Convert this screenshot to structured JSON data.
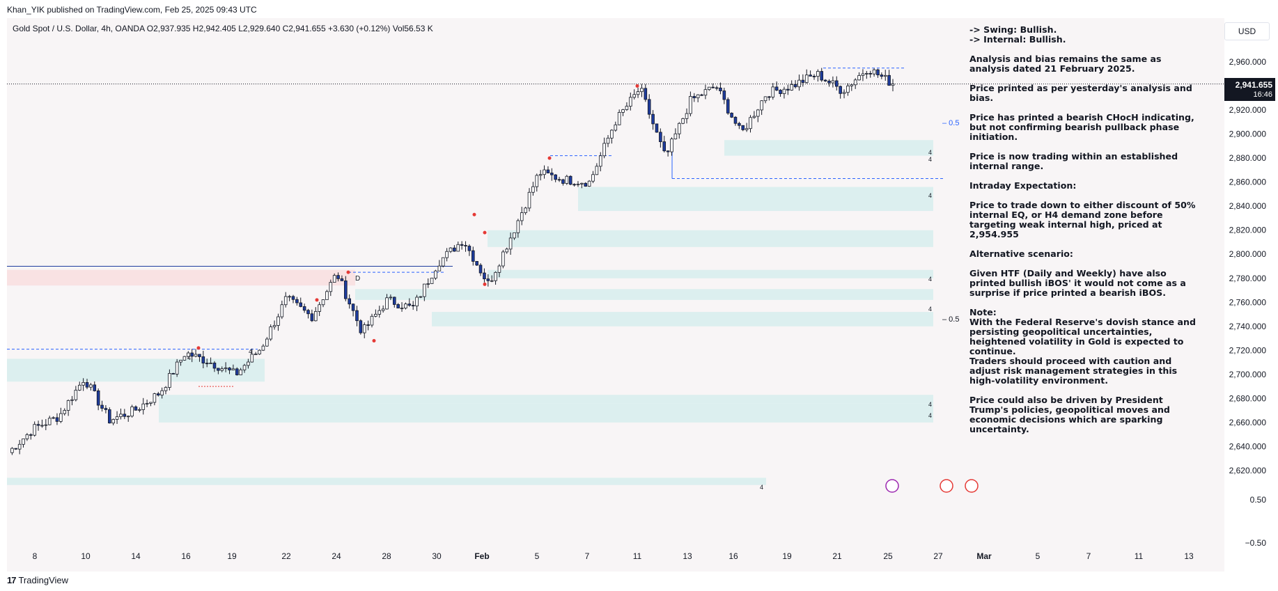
{
  "header": {
    "publisher": "Khan_YIK published on TradingView.com, Feb 25, 2025 09:43 UTC"
  },
  "symbol": {
    "line": "Gold Spot / U.S. Dollar, 4h, OANDA  O2,937.935  H2,942.405  L2,929.640  C2,941.655  +3.630 (+0.12%)  Vol56.53 K"
  },
  "price_axis": {
    "currency": "USD",
    "last_price": "2,941.655",
    "countdown": "16:46",
    "ticks": [
      "2,960.000",
      "2,940.000",
      "2,920.000",
      "2,900.000",
      "2,880.000",
      "2,860.000",
      "2,840.000",
      "2,820.000",
      "2,800.000",
      "2,780.000",
      "2,760.000",
      "2,740.000",
      "2,720.000",
      "2,700.000",
      "2,680.000",
      "2,660.000",
      "2,640.000",
      "2,620.000"
    ],
    "osc_ticks": [
      "0.50",
      "−0.50"
    ]
  },
  "time_axis": {
    "labels": [
      "8",
      "10",
      "14",
      "16",
      "19",
      "22",
      "24",
      "28",
      "30",
      "Feb",
      "5",
      "7",
      "11",
      "13",
      "16",
      "19",
      "21",
      "25",
      "27",
      "Mar",
      "5",
      "7",
      "11",
      "13"
    ]
  },
  "annotations": {
    "eq_label_top": "– 0.5",
    "eq_label_bottom": "– 0.5",
    "zone_labels": [
      "4",
      "4",
      "4",
      "4",
      "4",
      "4",
      "4",
      "4",
      "4",
      "4"
    ],
    "d_label": "D"
  },
  "notes": [
    "-> Swing:  Bullish.\n-> Internal:  Bullish.",
    "Analysis and bias remains the same as analysis dated 21 February 2025.",
    "Price printed as per yesterday's analysis and bias.",
    "Price has printed a bearish CHocH indicating, but not confirming bearish pullback phase initiation.",
    "Price is now trading within an established internal range.",
    "Intraday Expectation:",
    "Price to trade down to either discount of 50% internal EQ, or H4 demand zone before targeting weak internal high, priced at 2,954.955",
    "Alternative scenario:",
    "Given HTF (Daily and Weekly) have also printed bullish iBOS' it would not come as a surprise if price printed a bearish iBOS.",
    "Note:\nWith the Federal Reserve's dovish stance and persisting geopolitical uncertainties, heightened volatility in Gold is expected to continue.\nTraders should proceed with caution and adjust risk management strategies in this high-volatility environment.",
    "Price could also be driven by President Trump's policies, geopolitical moves and economic decisions which are sparking uncertainty."
  ],
  "footer": {
    "brand": "TradingView",
    "logo": "tradingview-logo"
  },
  "colors": {
    "bull": "#ffffff",
    "bear": "#1e3c9e",
    "zone": "#dcefef",
    "supply": "#f9e2e3",
    "dash": "#2962ff"
  },
  "chart_data": {
    "type": "candlestick",
    "ylim": [
      2610,
      2975
    ],
    "last_price": 2941.655,
    "waypoints": [
      [
        "Jan 7",
        2635
      ],
      [
        "Jan 8",
        2655
      ],
      [
        "Jan 9",
        2665
      ],
      [
        "Jan 10",
        2697
      ],
      [
        "Jan 13",
        2662
      ],
      [
        "Jan 14",
        2670
      ],
      [
        "Jan 15",
        2685
      ],
      [
        "Jan 16",
        2718
      ],
      [
        "Jan 17",
        2710
      ],
      [
        "Jan 20",
        2700
      ],
      [
        "Jan 21",
        2722
      ],
      [
        "Jan 22",
        2763
      ],
      [
        "Jan 23",
        2748
      ],
      [
        "Jan 24",
        2784
      ],
      [
        "Jan 27",
        2735
      ],
      [
        "Jan 28",
        2762
      ],
      [
        "Jan 29",
        2755
      ],
      [
        "Jan 30",
        2793
      ],
      [
        "Jan 31",
        2812
      ],
      [
        "Feb 3",
        2775
      ],
      [
        "Feb 4",
        2820
      ],
      [
        "Feb 5",
        2868
      ],
      [
        "Feb 6",
        2862
      ],
      [
        "Feb 7",
        2860
      ],
      [
        "Feb 10",
        2910
      ],
      [
        "Feb 11",
        2938
      ],
      [
        "Feb 12",
        2880
      ],
      [
        "Feb 13",
        2928
      ],
      [
        "Feb 14",
        2940
      ],
      [
        "Feb 17",
        2900
      ],
      [
        "Feb 18",
        2934
      ],
      [
        "Feb 19",
        2940
      ],
      [
        "Feb 20",
        2950
      ],
      [
        "Feb 21",
        2936
      ],
      [
        "Feb 24",
        2955
      ],
      [
        "Feb 25",
        2941.655
      ]
    ],
    "zones": [
      {
        "from": 2762,
        "to": 2771,
        "type": "demand"
      },
      {
        "from": 2740,
        "to": 2752,
        "type": "demand"
      },
      {
        "from": 2660,
        "to": 2676,
        "type": "demand"
      },
      {
        "from": 2806,
        "to": 2820,
        "type": "demand"
      },
      {
        "from": 2836,
        "to": 2856,
        "type": "demand"
      },
      {
        "from": 2882,
        "to": 2895,
        "type": "demand"
      },
      {
        "from": 2694,
        "to": 2713,
        "type": "demand"
      },
      {
        "from": 2774,
        "to": 2787,
        "type": "supply"
      },
      {
        "from": 2608,
        "to": 2614,
        "type": "demand"
      }
    ],
    "levels": [
      {
        "price": 2954.955,
        "label": "weak internal high"
      },
      {
        "price": 2863,
        "label": "internal low"
      },
      {
        "price": 2905,
        "label": "0.5"
      }
    ]
  }
}
